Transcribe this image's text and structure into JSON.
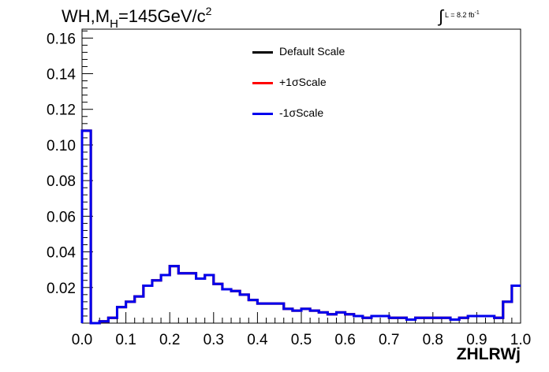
{
  "header": {
    "title_prefix": "WH,M",
    "title_sub": "H",
    "title_mid": "=145GeV/c",
    "title_sup": "2",
    "lumi_text": "L = 8.2 fb",
    "lumi_exp": "-1"
  },
  "chart_data": {
    "type": "line",
    "xlabel": "ZHLRWj",
    "ylabel": "",
    "xlim": [
      0.0,
      1.0
    ],
    "ylim": [
      0.0,
      0.165
    ],
    "x_ticks": [
      "0.0",
      "0.1",
      "0.2",
      "0.3",
      "0.4",
      "0.5",
      "0.6",
      "0.7",
      "0.8",
      "0.9",
      "1.0"
    ],
    "y_ticks": [
      "0.02",
      "0.04",
      "0.06",
      "0.08",
      "0.10",
      "0.12",
      "0.14",
      "0.16"
    ],
    "x_tick_values": [
      0.0,
      0.1,
      0.2,
      0.3,
      0.4,
      0.5,
      0.6,
      0.7,
      0.8,
      0.9,
      1.0
    ],
    "y_tick_values": [
      0.02,
      0.04,
      0.06,
      0.08,
      0.1,
      0.12,
      0.14,
      0.16
    ],
    "grid": false,
    "legend_position": "top-center",
    "bin_edges": [
      0.0,
      0.02,
      0.04,
      0.06,
      0.08,
      0.1,
      0.12,
      0.14,
      0.16,
      0.18,
      0.2,
      0.22,
      0.24,
      0.26,
      0.28,
      0.3,
      0.32,
      0.34,
      0.36,
      0.38,
      0.4,
      0.42,
      0.44,
      0.46,
      0.48,
      0.5,
      0.52,
      0.54,
      0.56,
      0.58,
      0.6,
      0.62,
      0.64,
      0.66,
      0.68,
      0.7,
      0.72,
      0.74,
      0.76,
      0.78,
      0.8,
      0.82,
      0.84,
      0.86,
      0.88,
      0.9,
      0.92,
      0.94,
      0.96,
      0.98,
      1.0
    ],
    "series": [
      {
        "name": "Default Scale",
        "color": "#000000",
        "values": [
          0.108,
          0.0,
          0.001,
          0.003,
          0.009,
          0.012,
          0.015,
          0.021,
          0.024,
          0.027,
          0.032,
          0.028,
          0.028,
          0.025,
          0.027,
          0.022,
          0.019,
          0.018,
          0.016,
          0.013,
          0.011,
          0.011,
          0.011,
          0.008,
          0.007,
          0.008,
          0.007,
          0.006,
          0.005,
          0.006,
          0.005,
          0.004,
          0.003,
          0.004,
          0.004,
          0.003,
          0.003,
          0.002,
          0.003,
          0.003,
          0.003,
          0.003,
          0.002,
          0.003,
          0.004,
          0.004,
          0.004,
          0.003,
          0.012,
          0.021
        ]
      },
      {
        "name": "+1σScale",
        "color": "#ff0000",
        "values": [
          0.108,
          0.0,
          0.001,
          0.003,
          0.009,
          0.012,
          0.015,
          0.021,
          0.024,
          0.027,
          0.032,
          0.028,
          0.028,
          0.025,
          0.027,
          0.022,
          0.019,
          0.018,
          0.016,
          0.013,
          0.011,
          0.011,
          0.011,
          0.008,
          0.007,
          0.008,
          0.007,
          0.006,
          0.005,
          0.006,
          0.005,
          0.004,
          0.003,
          0.004,
          0.004,
          0.003,
          0.003,
          0.002,
          0.003,
          0.003,
          0.003,
          0.003,
          0.002,
          0.003,
          0.004,
          0.004,
          0.004,
          0.003,
          0.012,
          0.021
        ]
      },
      {
        "name": "-1σScale",
        "color": "#0000ee",
        "values": [
          0.108,
          0.0,
          0.001,
          0.003,
          0.009,
          0.012,
          0.015,
          0.021,
          0.024,
          0.027,
          0.032,
          0.028,
          0.028,
          0.025,
          0.027,
          0.022,
          0.019,
          0.018,
          0.016,
          0.013,
          0.011,
          0.011,
          0.011,
          0.008,
          0.007,
          0.008,
          0.007,
          0.006,
          0.005,
          0.006,
          0.005,
          0.004,
          0.003,
          0.004,
          0.004,
          0.003,
          0.003,
          0.002,
          0.003,
          0.003,
          0.003,
          0.003,
          0.002,
          0.003,
          0.004,
          0.004,
          0.004,
          0.003,
          0.012,
          0.021
        ]
      }
    ]
  }
}
